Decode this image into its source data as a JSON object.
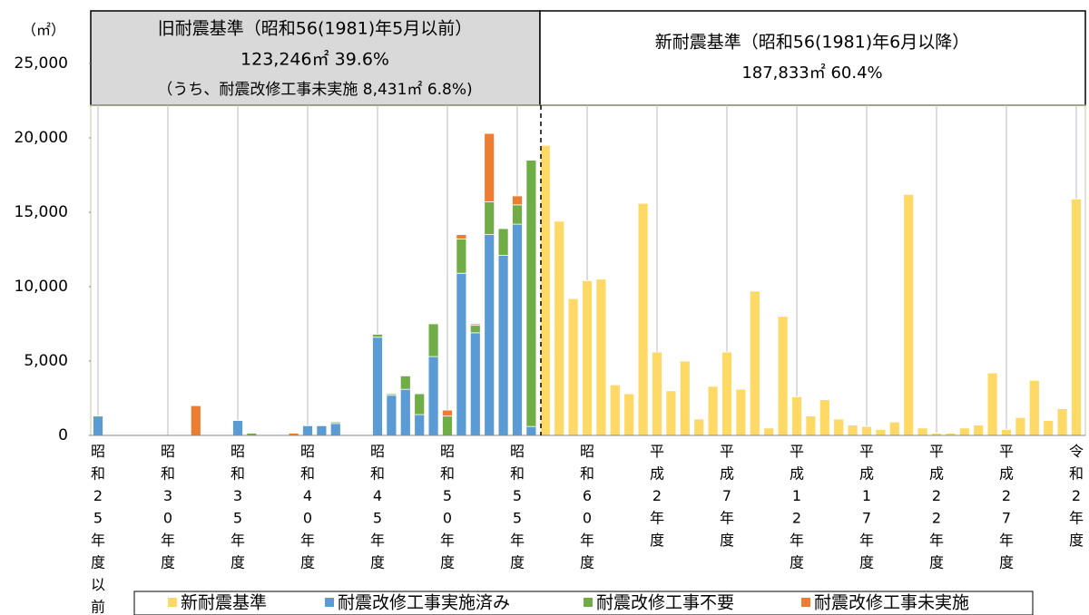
{
  "chart_data": {
    "type": "stacked_bar",
    "unit_label": "（㎡）",
    "old_standard": {
      "title": "旧耐震基準（昭和56(1981)年5月以前）",
      "total": "123,246㎡ 39.6%",
      "note": "（うち、耐震改修工事未実施 8,431㎡ 6.8%)"
    },
    "new_standard": {
      "title": "新耐震基準（昭和56(1981)年6月以降）",
      "total": "187,833㎡ 60.4%"
    },
    "categories": [
      "昭和25年度以前",
      null,
      null,
      null,
      null,
      "昭和30年度",
      null,
      null,
      null,
      null,
      "昭和35年度",
      null,
      null,
      null,
      null,
      "昭和40年度",
      null,
      null,
      null,
      null,
      "昭和45年度",
      null,
      null,
      null,
      null,
      "昭和50年度",
      null,
      null,
      null,
      null,
      "昭和55年度",
      null,
      null,
      null,
      null,
      "昭和60年度",
      null,
      null,
      null,
      null,
      "平成2年度",
      null,
      null,
      null,
      null,
      "平成7年度",
      null,
      null,
      null,
      null,
      "平成12年度",
      null,
      null,
      null,
      null,
      "平成17年度",
      null,
      null,
      null,
      null,
      "平成22年度",
      null,
      null,
      null,
      null,
      "平成27年度",
      null,
      null,
      null,
      null,
      "令和2年度"
    ],
    "series": [
      {
        "name": "新耐震基準",
        "color": "#ffd966",
        "values": [
          0,
          0,
          0,
          0,
          0,
          0,
          0,
          0,
          0,
          0,
          0,
          0,
          0,
          0,
          0,
          0,
          0,
          0,
          0,
          0,
          0,
          0,
          0,
          0,
          0,
          0,
          0,
          0,
          0,
          0,
          0,
          0,
          19500,
          14400,
          9200,
          10400,
          10500,
          3400,
          2800,
          15600,
          5600,
          3000,
          5000,
          1100,
          3300,
          5600,
          3100,
          9700,
          500,
          8000,
          2600,
          1300,
          2400,
          1100,
          700,
          600,
          400,
          900,
          16200,
          500,
          150,
          150,
          500,
          700,
          4200,
          400,
          1200,
          3700,
          1000,
          1800,
          15900
        ]
      },
      {
        "name": "耐震改修工事実施済み",
        "color": "#5b9bd5",
        "values": [
          1300,
          0,
          0,
          0,
          0,
          0,
          0,
          0,
          0,
          0,
          1000,
          0,
          0,
          0,
          0,
          650,
          650,
          800,
          0,
          0,
          6600,
          2700,
          3100,
          1400,
          5300,
          0,
          10900,
          6900,
          13500,
          12100,
          14200,
          600,
          0,
          0,
          0,
          0,
          0,
          0,
          0,
          0,
          0,
          0,
          0,
          0,
          0,
          0,
          0,
          0,
          0,
          0,
          0,
          0,
          0,
          0,
          0,
          0,
          0,
          0,
          0,
          0,
          0,
          0,
          0,
          0,
          0,
          0,
          0,
          0,
          0,
          0,
          0
        ]
      },
      {
        "name": "耐震改修工事不要",
        "color": "#70ad47",
        "values": [
          0,
          0,
          0,
          0,
          0,
          0,
          0,
          0,
          0,
          0,
          0,
          150,
          0,
          0,
          0,
          0,
          0,
          100,
          0,
          0,
          200,
          100,
          900,
          1400,
          2200,
          1300,
          2300,
          500,
          2200,
          1800,
          1300,
          17900,
          0,
          0,
          0,
          0,
          0,
          0,
          0,
          0,
          0,
          0,
          0,
          0,
          0,
          0,
          0,
          0,
          0,
          0,
          0,
          0,
          0,
          0,
          0,
          0,
          0,
          0,
          0,
          0,
          0,
          0,
          0,
          0,
          0,
          0,
          0,
          0,
          0,
          0,
          0
        ]
      },
      {
        "name": "耐震改修工事未実施",
        "color": "#ed7d31",
        "values": [
          0,
          0,
          0,
          0,
          0,
          0,
          0,
          2000,
          0,
          0,
          0,
          0,
          0,
          0,
          150,
          0,
          0,
          0,
          0,
          0,
          0,
          0,
          0,
          0,
          0,
          400,
          300,
          100,
          4600,
          0,
          600,
          0,
          0,
          0,
          0,
          0,
          0,
          0,
          0,
          0,
          0,
          0,
          0,
          0,
          0,
          0,
          0,
          0,
          0,
          0,
          0,
          0,
          0,
          0,
          0,
          0,
          0,
          0,
          0,
          0,
          0,
          0,
          0,
          0,
          0,
          0,
          0,
          0,
          0,
          0,
          0
        ]
      }
    ],
    "ylim": [
      0,
      25000
    ],
    "yticks": [
      0,
      {
        "value": 5000,
        "label": "5,000"
      },
      {
        "value": 10000,
        "label": "10,000"
      },
      {
        "value": 15000,
        "label": "15,000"
      },
      {
        "value": 20000,
        "label": "20,000"
      },
      {
        "value": 25000,
        "label": "25,000"
      }
    ],
    "legend": "bottom"
  }
}
